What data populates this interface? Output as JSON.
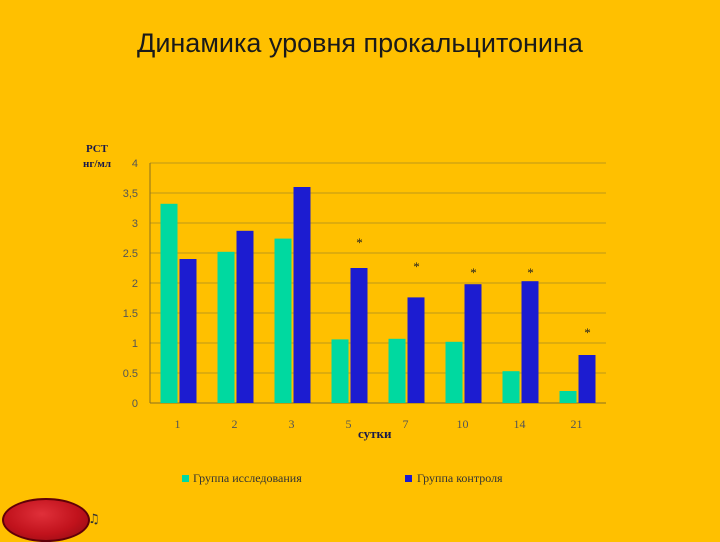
{
  "title": "Динамика уровня прокальцитонина",
  "chart_data": {
    "type": "bar",
    "ylabel_line1": "PCT",
    "ylabel_line2": "нг/мл",
    "xlabel": "сутки",
    "categories": [
      "1",
      "2",
      "3",
      "5",
      "7",
      "10",
      "14",
      "21"
    ],
    "ylim": [
      0,
      4
    ],
    "yticks": [
      "0",
      "0.5",
      "1",
      "1.5",
      "2",
      "2.5",
      "3",
      "3,5",
      "4"
    ],
    "grid": true,
    "legend_position": "bottom",
    "series": [
      {
        "name": "Группа исследования",
        "color": "#00D9A0",
        "values": [
          3.32,
          2.52,
          2.74,
          1.06,
          1.07,
          1.02,
          0.53,
          0.2
        ]
      },
      {
        "name": "Группа контроля",
        "color": "#1C1CD0",
        "values": [
          2.4,
          2.87,
          3.6,
          2.25,
          1.76,
          1.98,
          2.03,
          0.8
        ]
      }
    ],
    "annotations": [
      {
        "category_index": 3,
        "text": "*",
        "y": 2.75
      },
      {
        "category_index": 4,
        "text": "*",
        "y": 2.35
      },
      {
        "category_index": 5,
        "text": "*",
        "y": 2.25
      },
      {
        "category_index": 6,
        "text": "*",
        "y": 2.25
      },
      {
        "category_index": 7,
        "text": "*",
        "y": 1.25
      }
    ]
  },
  "nav": {
    "icon": "speaker-icon",
    "glyph": "♫"
  }
}
